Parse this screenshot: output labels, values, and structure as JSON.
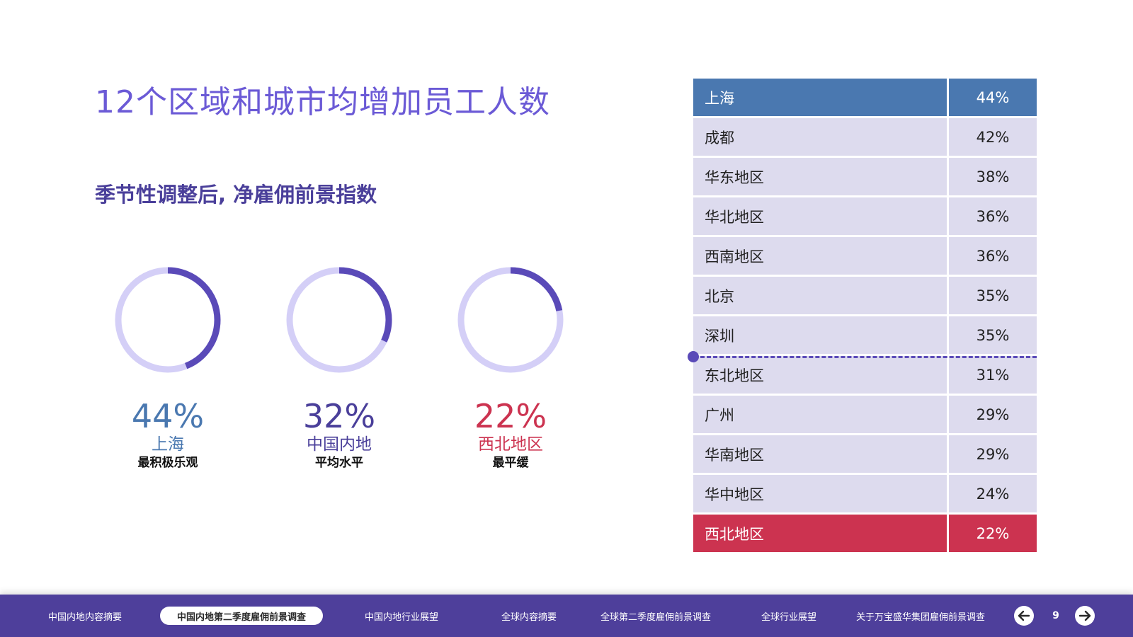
{
  "title": "12个区域和城市均增加员工人数",
  "subtitle": "季节性调整后, 净雇佣前景指数",
  "colors": {
    "top": "#4a78b0",
    "average": "#4a3f9a",
    "low": "#cc3350",
    "ring_track": "#d4cff7",
    "ring_fill": "#5a4ab8",
    "table_row": "#dddbee",
    "footer": "#4e3f9b"
  },
  "stats": [
    {
      "value": 44,
      "pct": "44%",
      "name": "上海",
      "desc": "最积极乐观"
    },
    {
      "value": 32,
      "pct": "32%",
      "name": "中国内地",
      "desc": "平均水平"
    },
    {
      "value": 22,
      "pct": "22%",
      "name": "西北地区",
      "desc": "最平缓"
    }
  ],
  "table": {
    "rows": [
      {
        "region": "上海",
        "value": "44%"
      },
      {
        "region": "成都",
        "value": "42%"
      },
      {
        "region": "华东地区",
        "value": "38%"
      },
      {
        "region": "华北地区",
        "value": "36%"
      },
      {
        "region": "西南地区",
        "value": "36%"
      },
      {
        "region": "北京",
        "value": "35%"
      },
      {
        "region": "深圳",
        "value": "35%"
      },
      {
        "region": "东北地区",
        "value": "31%"
      },
      {
        "region": "广州",
        "value": "29%"
      },
      {
        "region": "华南地区",
        "value": "29%"
      },
      {
        "region": "华中地区",
        "value": "24%"
      },
      {
        "region": "西北地区",
        "value": "22%"
      }
    ]
  },
  "footer": {
    "nav": [
      "中国内地内容摘要",
      "中国内地第二季度雇佣前景调查",
      "中国内地行业展望",
      "全球内容摘要",
      "全球第二季度雇佣前景调查",
      "全球行业展望",
      "关于万宝盛华集团雇佣前景调查"
    ],
    "active_index": 1,
    "page_number": "9",
    "prev_icon": "arrow-left-icon",
    "next_icon": "arrow-right-icon"
  }
}
